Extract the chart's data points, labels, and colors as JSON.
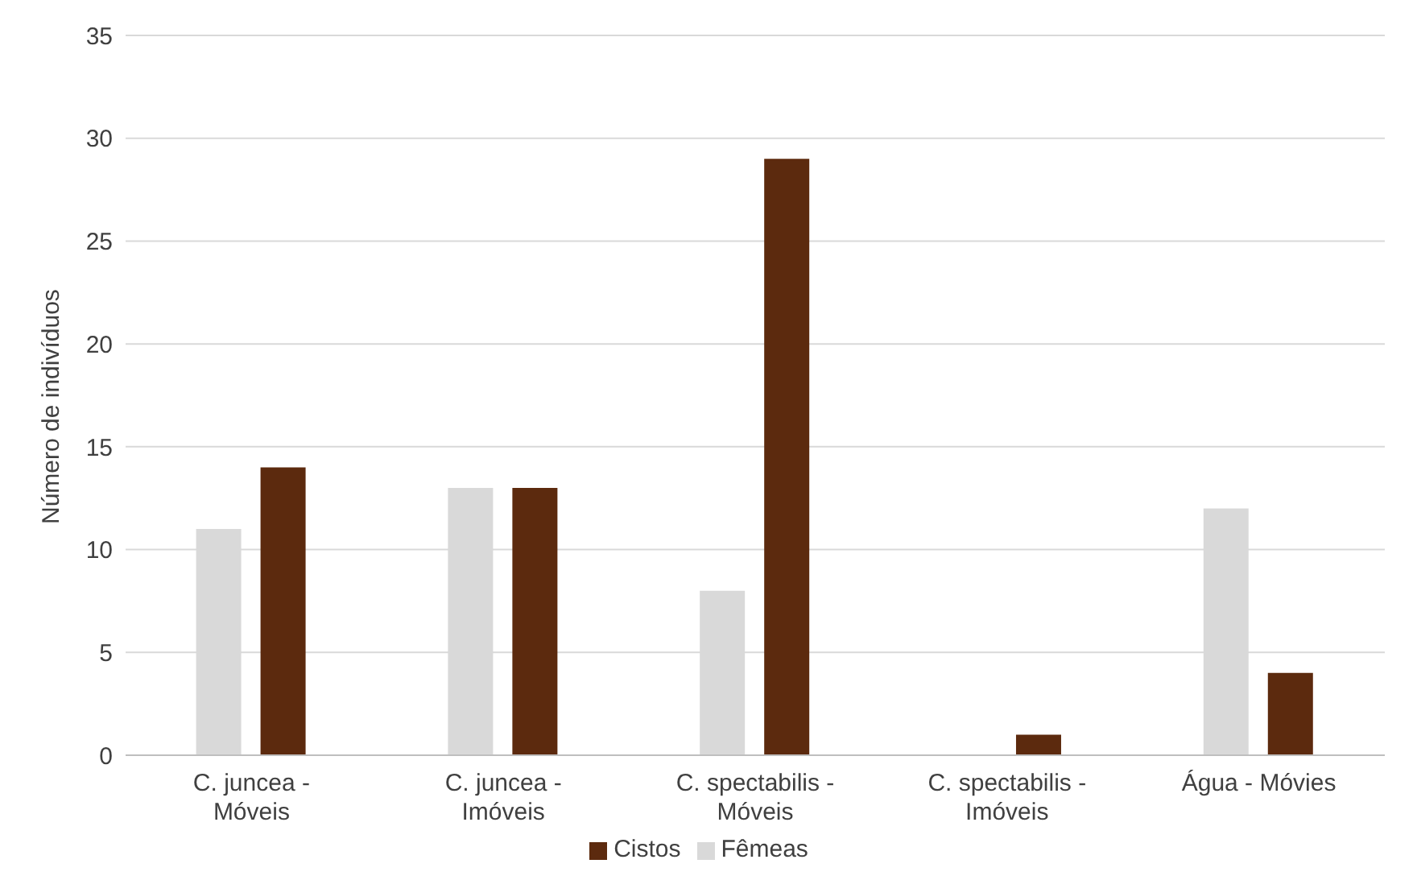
{
  "chart_data": {
    "type": "bar",
    "ylabel": "Número de indivíduos",
    "categories": [
      "C. juncea - Móveis",
      "C. juncea - Imóveis",
      "C. spectabilis - Móveis",
      "C. spectabilis - Imóveis",
      "Água - Móvies"
    ],
    "series": [
      {
        "name": "Fêmeas",
        "color": "#d9d9d9",
        "values": [
          11,
          13,
          8,
          0,
          12
        ]
      },
      {
        "name": "Cistos",
        "color": "#5c2a0e",
        "values": [
          14,
          13,
          29,
          1,
          4
        ]
      }
    ],
    "ylim": [
      0,
      35
    ],
    "yticks": [
      0,
      5,
      10,
      15,
      20,
      25,
      30,
      35
    ],
    "grid": "y",
    "legend": "bottom"
  }
}
